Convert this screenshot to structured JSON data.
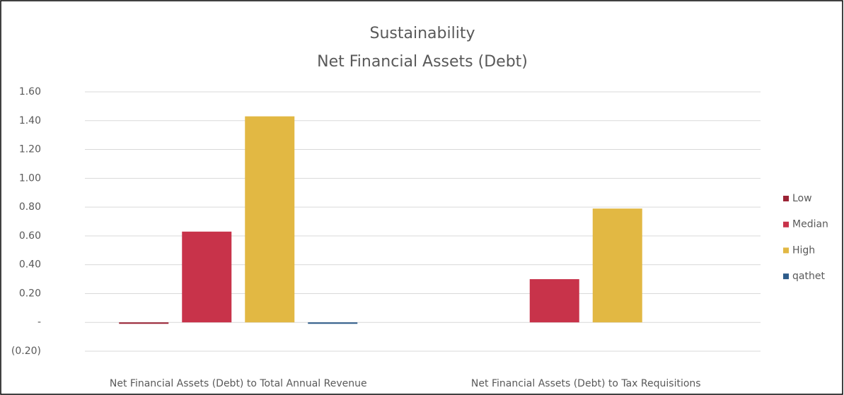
{
  "chart_data": {
    "type": "bar",
    "title": "Sustainability",
    "subtitle": "Net Financial Assets (Debt)",
    "categories": [
      "Net Financial Assets (Debt) to Total Annual Revenue",
      "Net Financial Assets (Debt) to Tax Requisitions"
    ],
    "series": [
      {
        "name": "Low",
        "color": "#9b2335",
        "values": [
          -0.01,
          0
        ]
      },
      {
        "name": "Median",
        "color": "#c8334a",
        "values": [
          0.63,
          0.3
        ]
      },
      {
        "name": "High",
        "color": "#e2b843",
        "values": [
          1.43,
          0.79
        ]
      },
      {
        "name": "qathet",
        "color": "#2e5c8a",
        "values": [
          -0.01,
          0
        ]
      }
    ],
    "ylim": [
      -0.2,
      1.6
    ],
    "yticks": [
      {
        "value": -0.2,
        "label": "(0.20)"
      },
      {
        "value": 0,
        "label": "-"
      },
      {
        "value": 0.2,
        "label": "0.20"
      },
      {
        "value": 0.4,
        "label": "0.40"
      },
      {
        "value": 0.6,
        "label": "0.60"
      },
      {
        "value": 0.8,
        "label": "0.80"
      },
      {
        "value": 1.0,
        "label": "1.00"
      },
      {
        "value": 1.2,
        "label": "1.20"
      },
      {
        "value": 1.4,
        "label": "1.40"
      },
      {
        "value": 1.6,
        "label": "1.60"
      }
    ],
    "grid": true,
    "legend": "right"
  }
}
